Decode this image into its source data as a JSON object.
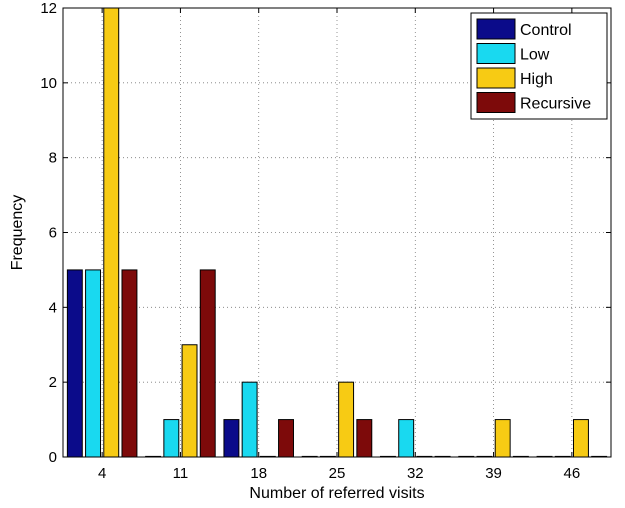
{
  "chart_data": {
    "type": "bar",
    "xlabel": "Number of referred visits",
    "ylabel": "Frequency",
    "categories": [
      "4",
      "11",
      "18",
      "25",
      "32",
      "39",
      "46"
    ],
    "ylim": [
      0,
      12
    ],
    "yticks": [
      0,
      2,
      4,
      6,
      8,
      10,
      12
    ],
    "grid": true,
    "legend_position": "top-right",
    "series": [
      {
        "name": "Control",
        "color": "#0b0b8a",
        "values": [
          5,
          0,
          1,
          0,
          0,
          0,
          0
        ]
      },
      {
        "name": "Low",
        "color": "#19d9f0",
        "values": [
          5,
          1,
          2,
          0,
          1,
          0,
          0
        ]
      },
      {
        "name": "High",
        "color": "#f7cb14",
        "values": [
          12,
          3,
          0,
          2,
          0,
          1,
          1
        ]
      },
      {
        "name": "Recursive",
        "color": "#7d0a0a",
        "values": [
          5,
          5,
          1,
          1,
          0,
          0,
          0
        ]
      }
    ]
  }
}
